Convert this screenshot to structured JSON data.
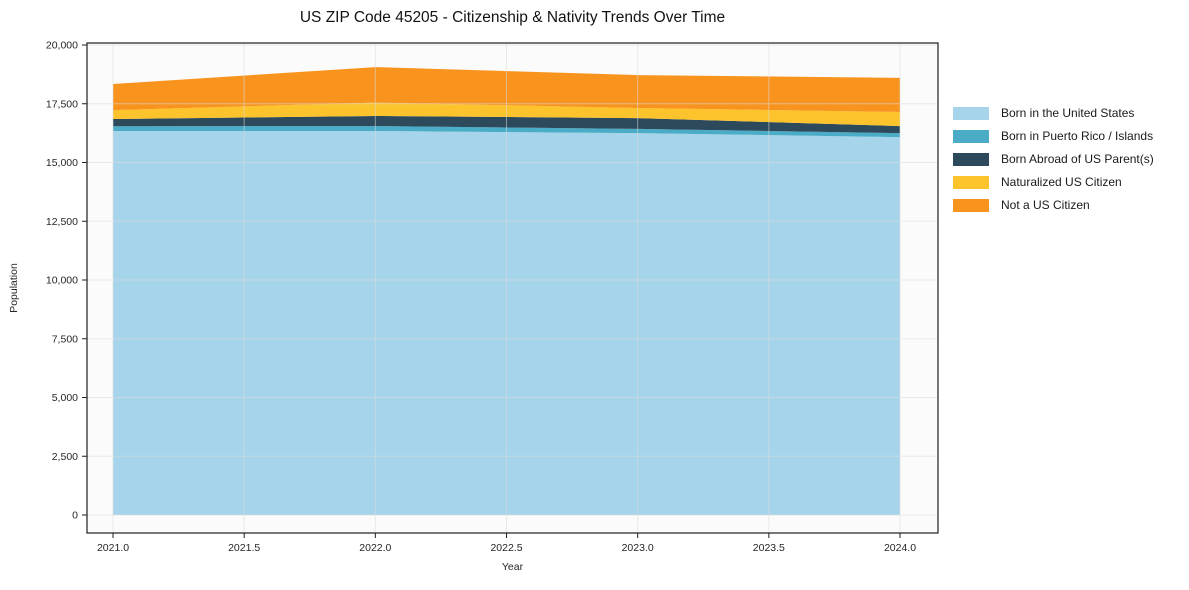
{
  "chart_data": {
    "type": "area",
    "stacked": true,
    "title": "US ZIP Code 45205 - Citizenship & Nativity Trends Over Time",
    "xlabel": "Year",
    "ylabel": "Population",
    "x": [
      2021,
      2022,
      2023,
      2024
    ],
    "series": [
      {
        "name": "Born in the United States",
        "color": "#A6D4EA",
        "values": [
          16340,
          16340,
          16250,
          16080
        ]
      },
      {
        "name": "Born in Puerto Rico / Islands",
        "color": "#4AACC6",
        "values": [
          200,
          210,
          180,
          170
        ]
      },
      {
        "name": "Born Abroad of US Parent(s)",
        "color": "#2C4A5C",
        "values": [
          310,
          430,
          460,
          300
        ]
      },
      {
        "name": "Naturalized US Citizen",
        "color": "#FDC32C",
        "values": [
          380,
          570,
          430,
          600
        ]
      },
      {
        "name": "Not a US Citizen",
        "color": "#F8941E",
        "values": [
          1110,
          1510,
          1400,
          1450
        ]
      }
    ],
    "totals": [
      18340,
      19060,
      18720,
      18600
    ],
    "ylim": [
      0,
      20000
    ],
    "x_tick_values": [
      2021.0,
      2021.5,
      2022.0,
      2022.5,
      2023.0,
      2023.5,
      2024.0
    ],
    "x_tick_labels": [
      "2021.0",
      "2021.5",
      "2022.0",
      "2022.5",
      "2023.0",
      "2023.5",
      "2024.0"
    ],
    "y_tick_values": [
      0,
      2500,
      5000,
      7500,
      10000,
      12500,
      15000,
      17500,
      20000
    ],
    "y_tick_labels": [
      "0",
      "2,500",
      "5,000",
      "7,500",
      "10,000",
      "12,500",
      "15,000",
      "17,500",
      "20,000"
    ],
    "grid": true,
    "legend_position": "right",
    "colors": {
      "plot_background": "#fbfbfb",
      "gridline": "#dcdcdc",
      "spine": "#1f1f1f"
    }
  }
}
